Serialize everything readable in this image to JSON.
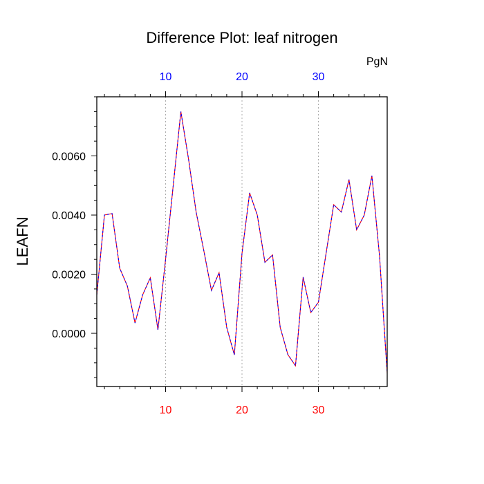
{
  "chart_data": {
    "type": "line",
    "title": "Difference Plot: leaf nitrogen",
    "units_label": "PgN",
    "ylabel": "LEAFN",
    "xlabel": "",
    "xlim": [
      1,
      39
    ],
    "ylim": [
      -0.0018,
      0.008
    ],
    "x_ticks": [
      10,
      20,
      30
    ],
    "x_tick_labels_bottom": [
      "10",
      "20",
      "30"
    ],
    "x_tick_labels_top": [
      "10",
      "20",
      "30"
    ],
    "y_ticks": [
      0.0,
      0.002,
      0.004,
      0.006
    ],
    "y_tick_labels": [
      "0.0000",
      "0.0020",
      "0.0040",
      "0.0060"
    ],
    "grid": "vertical dashed at x ticks",
    "colors": {
      "bottom_tick_labels": "#ff0000",
      "top_tick_labels": "#0000ff",
      "series_a": "#ff0000",
      "series_b": "#0000ff"
    },
    "x": [
      1,
      2,
      3,
      4,
      5,
      6,
      7,
      8,
      9,
      10,
      11,
      12,
      13,
      14,
      15,
      16,
      17,
      18,
      19,
      20,
      21,
      22,
      23,
      24,
      25,
      26,
      27,
      28,
      29,
      30,
      31,
      32,
      33,
      34,
      35,
      36,
      37,
      38,
      39
    ],
    "series": [
      {
        "values": [
          0.0013,
          0.004,
          0.00405,
          0.0022,
          0.0016,
          0.00035,
          0.0013,
          0.00188,
          0.00012,
          0.0025,
          0.005,
          0.0075,
          0.0059,
          0.0041,
          0.0028,
          0.00145,
          0.00205,
          0.0002,
          -0.00073,
          0.0027,
          0.00475,
          0.004,
          0.0024,
          0.00265,
          0.0002,
          -0.00072,
          -0.0011,
          0.0019,
          0.0007,
          0.00105,
          0.0027,
          0.00435,
          0.0041,
          0.0052,
          0.0035,
          0.004,
          0.00533,
          0.0026,
          -0.00135
        ]
      }
    ]
  }
}
